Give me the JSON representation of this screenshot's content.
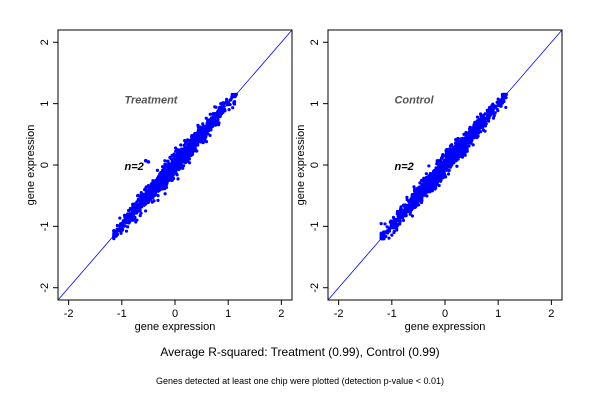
{
  "figure": {
    "caption": "Average R-squared: Treatment (0.99), Control (0.99)",
    "footnote": "Genes detected at least one chip were plotted (detection p-value < 0.01)"
  },
  "colors": {
    "points": "#0000ff",
    "identity_line": "#0000ff",
    "label_text": "#555555",
    "frame": "#000000"
  },
  "chart_data": [
    {
      "type": "scatter",
      "title": "Treatment",
      "annotation": "n=2",
      "xlabel": "gene expression",
      "ylabel": "gene expression",
      "xlim": [
        -2.2,
        2.2
      ],
      "ylim": [
        -2.2,
        2.2
      ],
      "xticks": [
        -2,
        -1,
        0,
        1,
        2
      ],
      "yticks": [
        -2,
        -1,
        0,
        1,
        2
      ],
      "reference_line": "y = x",
      "r_squared": 0.99,
      "grid": false,
      "points_range": {
        "x": [
          -1.15,
          1.15
        ],
        "y": [
          -1.2,
          1.15
        ]
      },
      "outliers": [
        [
          -0.55,
          0.07
        ],
        [
          -0.5,
          0.05
        ]
      ],
      "series": [
        {
          "values": [
            [
              -1.1,
              -1.12
            ],
            [
              -1.0,
              -1.0
            ],
            [
              -0.8,
              -0.78
            ],
            [
              -0.6,
              -0.62
            ],
            [
              -0.4,
              -0.38
            ],
            [
              -0.2,
              -0.2
            ],
            [
              0.0,
              0.02
            ],
            [
              0.2,
              0.18
            ],
            [
              0.4,
              0.42
            ],
            [
              0.6,
              0.6
            ],
            [
              0.8,
              0.78
            ],
            [
              1.0,
              1.0
            ],
            [
              1.1,
              1.12
            ]
          ]
        }
      ]
    },
    {
      "type": "scatter",
      "title": "Control",
      "annotation": "n=2",
      "xlabel": "gene expression",
      "ylabel": "gene expression",
      "xlim": [
        -2.2,
        2.2
      ],
      "ylim": [
        -2.2,
        2.2
      ],
      "xticks": [
        -2,
        -1,
        0,
        1,
        2
      ],
      "yticks": [
        -2,
        -1,
        0,
        1,
        2
      ],
      "reference_line": "y = x",
      "r_squared": 0.99,
      "grid": false,
      "points_range": {
        "x": [
          -1.2,
          1.15
        ],
        "y": [
          -1.2,
          1.15
        ]
      },
      "outliers": [],
      "series": [
        {
          "values": [
            [
              -1.15,
              -1.12
            ],
            [
              -1.0,
              -1.02
            ],
            [
              -0.8,
              -0.8
            ],
            [
              -0.6,
              -0.58
            ],
            [
              -0.4,
              -0.42
            ],
            [
              -0.2,
              -0.18
            ],
            [
              0.0,
              0.0
            ],
            [
              0.2,
              0.22
            ],
            [
              0.4,
              0.38
            ],
            [
              0.6,
              0.6
            ],
            [
              0.8,
              0.82
            ],
            [
              1.0,
              1.0
            ],
            [
              1.1,
              1.12
            ]
          ]
        }
      ]
    }
  ]
}
